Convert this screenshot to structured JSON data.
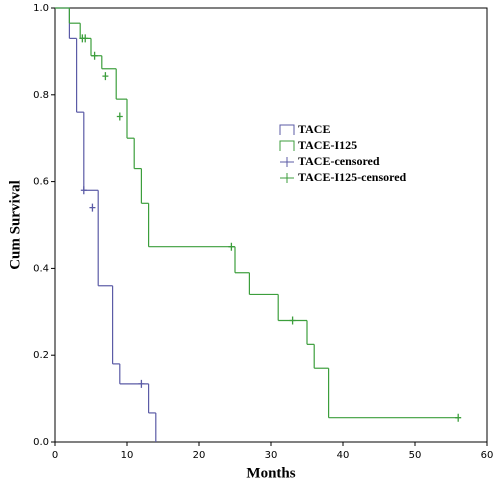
{
  "chart_data": {
    "type": "step",
    "x_label": "Months",
    "y_label": "Cum Survival",
    "xlim": [
      0,
      60
    ],
    "xticks": [
      0,
      10,
      20,
      30,
      40,
      50,
      60
    ],
    "ylim": [
      0,
      1
    ],
    "yticks": [
      {
        "value": 0,
        "label": "0.0"
      },
      0.2,
      0.4,
      0.6,
      0.8,
      {
        "value": 1,
        "label": "1.0"
      }
    ],
    "series": [
      {
        "name": "TACE",
        "color": "#5b5ba6",
        "kind": "curve",
        "x": [
          0,
          2,
          3,
          4,
          6,
          8,
          9,
          13,
          14
        ],
        "values": [
          1,
          0.93,
          0.76,
          0.58,
          0.36,
          0.18,
          0.134,
          0.067,
          0
        ]
      },
      {
        "name": "TACE-I125",
        "color": "#3c9e3c",
        "kind": "curve",
        "x": [
          0,
          2,
          3.5,
          5,
          6.5,
          8.5,
          10,
          11,
          12,
          13,
          25,
          27,
          31,
          35,
          36,
          38
        ],
        "values": [
          1,
          0.965,
          0.93,
          0.89,
          0.86,
          0.79,
          0.7,
          0.63,
          0.55,
          0.45,
          0.39,
          0.34,
          0.28,
          0.225,
          0.17,
          0.056
        ]
      },
      {
        "name": "TACE-censored",
        "color": "#5b5ba6",
        "kind": "censored",
        "x": [
          4,
          5.2,
          12
        ],
        "values": [
          0.58,
          0.54,
          0.134
        ]
      },
      {
        "name": "TACE-I125-censored",
        "color": "#3c9e3c",
        "kind": "censored",
        "x": [
          3.8,
          4.2,
          5.5,
          7,
          9,
          24.5,
          33,
          56
        ],
        "values": [
          0.93,
          0.93,
          0.89,
          0.843,
          0.75,
          0.45,
          0.28,
          0.056
        ]
      }
    ]
  }
}
